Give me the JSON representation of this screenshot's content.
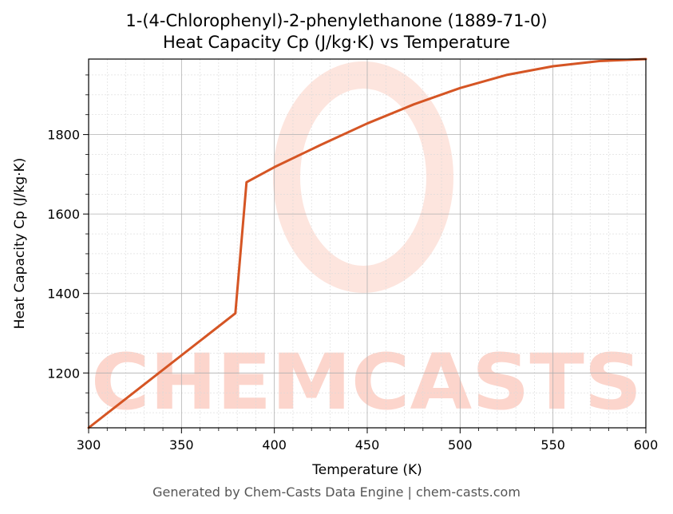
{
  "chart_data": {
    "type": "line",
    "title": "1-(4-Chlorophenyl)-2-phenylethanone (1889-71-0)",
    "subtitle": "Heat Capacity Cp (J/kg·K) vs Temperature",
    "xlabel": "Temperature (K)",
    "ylabel": "Heat Capacity Cp (J/kg·K)",
    "xlim": [
      300,
      600
    ],
    "ylim": [
      1062,
      1990
    ],
    "xticks": [
      300,
      350,
      400,
      450,
      500,
      550,
      600
    ],
    "yticks": [
      1200,
      1400,
      1600,
      1800
    ],
    "grid": true,
    "series": [
      {
        "color": "#d55524",
        "x": [
          300,
          379,
          385,
          400,
          425,
          450,
          475,
          500,
          525,
          550,
          575,
          600
        ],
        "y": [
          1062,
          1350,
          1680,
          1718,
          1774,
          1828,
          1876,
          1917,
          1950,
          1972,
          1985,
          1990
        ]
      }
    ]
  },
  "watermark": {
    "text": "CHEMCASTS",
    "color": "#fcd5cc"
  },
  "footer": "Generated by Chem-Casts Data Engine | chem-casts.com"
}
